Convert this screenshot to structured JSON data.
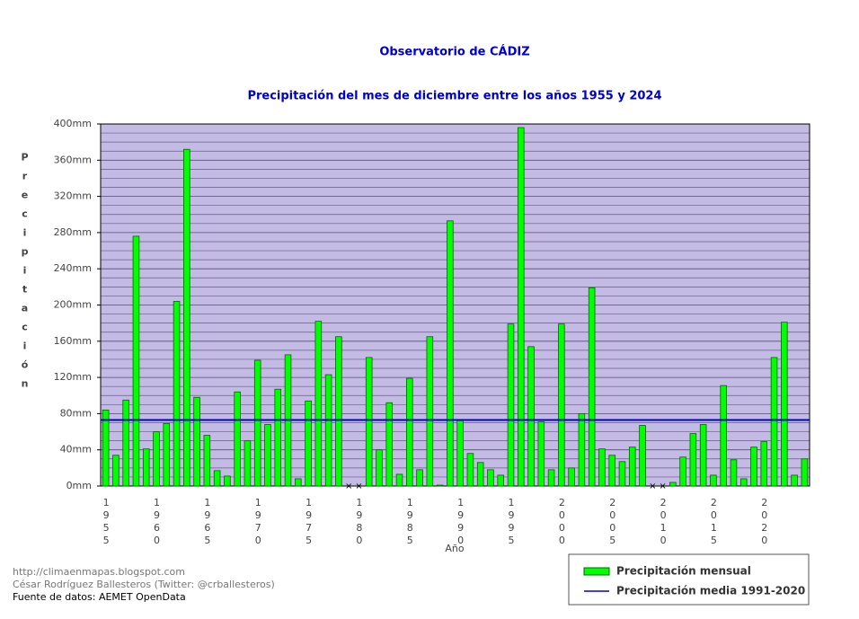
{
  "chart_data": {
    "type": "bar",
    "title": "Observatorio de CÁDIZ",
    "subtitle": "Precipitación del mes de diciembre entre los años 1955 y 2024",
    "y_label": "Precipitación",
    "x_label": "Año",
    "categories": [
      "1955",
      null,
      null,
      null,
      null,
      "1960",
      null,
      null,
      null,
      null,
      "1965",
      null,
      null,
      null,
      null,
      "1970",
      null,
      null,
      null,
      null,
      "1975",
      null,
      null,
      null,
      null,
      "1980",
      null,
      null,
      null,
      null,
      "1985",
      null,
      null,
      null,
      null,
      "1990",
      null,
      null,
      null,
      null,
      "1995",
      null,
      null,
      null,
      null,
      "2000",
      null,
      null,
      null,
      null,
      "2005",
      null,
      null,
      null,
      null,
      "2010",
      null,
      null,
      null,
      null,
      "2015",
      null,
      null,
      null,
      null,
      "2020",
      null,
      null,
      null,
      null
    ],
    "series": [
      {
        "name": "Precipitación mensual",
        "color": "#00ff00",
        "values": [
          84,
          34,
          95,
          276,
          41,
          60,
          69,
          204,
          372,
          98,
          56,
          17,
          11,
          104,
          50,
          139,
          68,
          107,
          145,
          8,
          94,
          182,
          123,
          165,
          null,
          null,
          142,
          40,
          92,
          13,
          119,
          18,
          165,
          1,
          293,
          73,
          36,
          26,
          18,
          12,
          179,
          396,
          154,
          71,
          18,
          179,
          20,
          80,
          219,
          41,
          34,
          27,
          43,
          67,
          null,
          null,
          4,
          32,
          58,
          68,
          12,
          111,
          29,
          8,
          43,
          49,
          142,
          181,
          12,
          30
        ]
      }
    ],
    "mean": {
      "name": "Precipitación media 1991-2020",
      "color": "#0000cc",
      "value": 73
    },
    "ylim": [
      0,
      400
    ],
    "yticks": [
      {
        "value": 0,
        "label": "0mm"
      },
      {
        "value": 40,
        "label": "40mm"
      },
      {
        "value": 80,
        "label": "80mm"
      },
      {
        "value": 120,
        "label": "120mm"
      },
      {
        "value": 160,
        "label": "160mm"
      },
      {
        "value": 200,
        "label": "200mm"
      },
      {
        "value": 240,
        "label": "240mm"
      },
      {
        "value": 280,
        "label": "280mm"
      },
      {
        "value": 320,
        "label": "320mm"
      },
      {
        "value": 360,
        "label": "360mm"
      },
      {
        "value": 400,
        "label": "400mm"
      }
    ],
    "minor_yticks": [
      10,
      20,
      30,
      50,
      60,
      70,
      90,
      100,
      110,
      130,
      140,
      150,
      170,
      180,
      190,
      210,
      220,
      230,
      250,
      260,
      270,
      290,
      300,
      310,
      330,
      340,
      350,
      370,
      380,
      390
    ],
    "grid": true,
    "legend": "bottom-right",
    "footer": [
      "http://climaenmapas.blogspot.com",
      "César Rodríguez Ballesteros (Twitter: @crballesteros)",
      "Fuente de datos: AEMET OpenData"
    ]
  }
}
